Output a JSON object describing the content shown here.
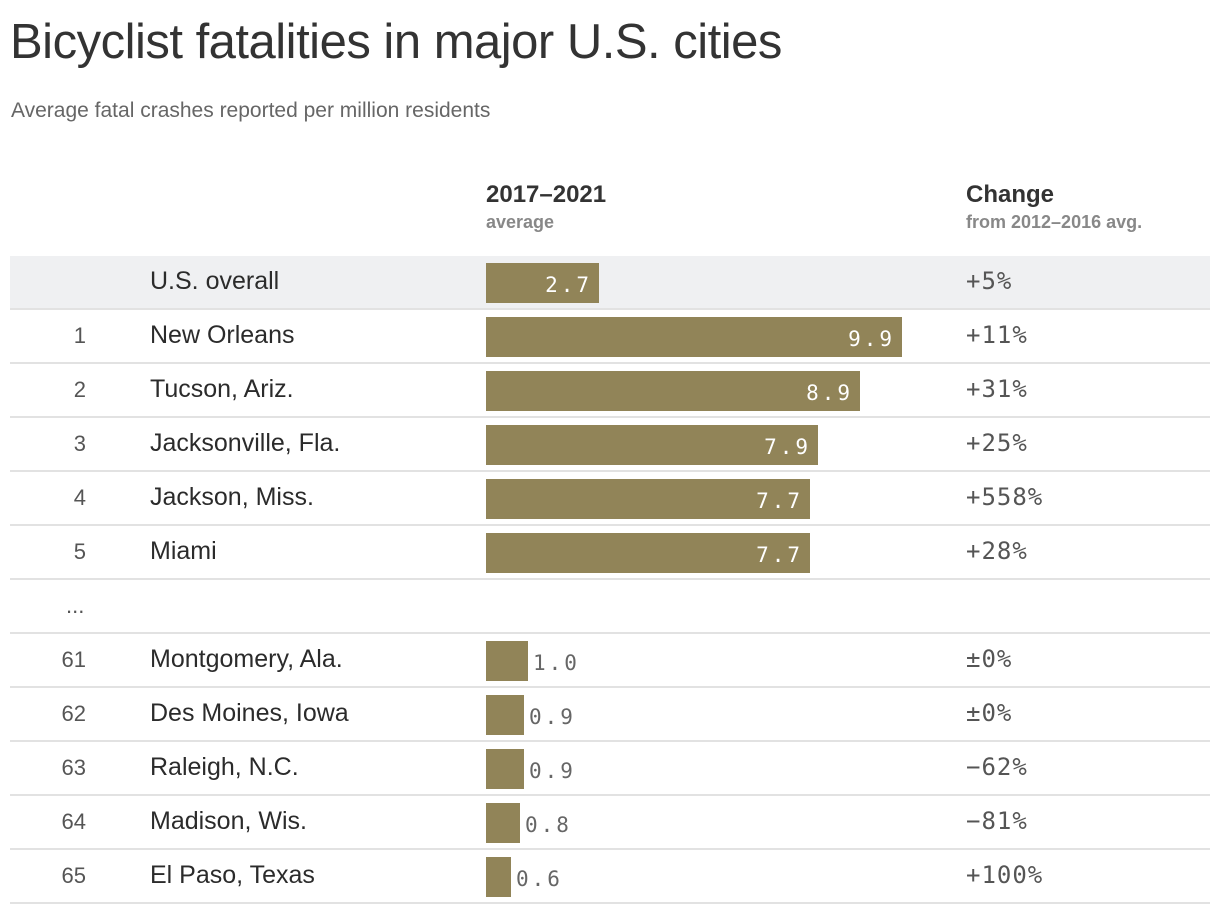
{
  "chart_data": {
    "type": "bar",
    "title": "Bicyclist fatalities in major U.S. cities",
    "subtitle": "Average fatal crashes reported per million residents",
    "columns": {
      "value_header": "2017–2021",
      "value_subheader": "average",
      "change_header": "Change",
      "change_subheader": "from 2012–2016 avg."
    },
    "xlim": [
      0,
      9.9
    ],
    "rows": [
      {
        "rank": "",
        "city": "U.S. overall",
        "value": 2.7,
        "value_label": "2.7",
        "change": "+5%",
        "highlight": true
      },
      {
        "rank": "1",
        "city": "New Orleans",
        "value": 9.9,
        "value_label": "9.9",
        "change": "+11%"
      },
      {
        "rank": "2",
        "city": "Tucson, Ariz.",
        "value": 8.9,
        "value_label": "8.9",
        "change": "+31%"
      },
      {
        "rank": "3",
        "city": "Jacksonville, Fla.",
        "value": 7.9,
        "value_label": "7.9",
        "change": "+25%"
      },
      {
        "rank": "4",
        "city": "Jackson, Miss.",
        "value": 7.7,
        "value_label": "7.7",
        "change": "+558%"
      },
      {
        "rank": "5",
        "city": "Miami",
        "value": 7.7,
        "value_label": "7.7",
        "change": "+28%"
      },
      {
        "separator": "..."
      },
      {
        "rank": "61",
        "city": "Montgomery, Ala.",
        "value": 1.0,
        "value_label": "1.0",
        "change": "±0%"
      },
      {
        "rank": "62",
        "city": "Des Moines, Iowa",
        "value": 0.9,
        "value_label": "0.9",
        "change": "±0%"
      },
      {
        "rank": "63",
        "city": "Raleigh, N.C.",
        "value": 0.9,
        "value_label": "0.9",
        "change": "−62%"
      },
      {
        "rank": "64",
        "city": "Madison, Wis.",
        "value": 0.8,
        "value_label": "0.8",
        "change": "−81%"
      },
      {
        "rank": "65",
        "city": "El Paso, Texas",
        "value": 0.6,
        "value_label": "0.6",
        "change": "+100%"
      }
    ],
    "colors": {
      "bar": "#918458",
      "highlight_row": "#eff0f2"
    }
  }
}
